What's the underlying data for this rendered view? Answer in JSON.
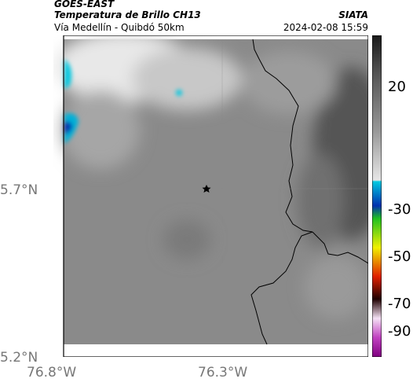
{
  "header": {
    "title_line1": "GOES-EAST",
    "title_line2": "Temperatura de Brillo CH13",
    "brand": "SIATA",
    "subtitle_left": "Vía Medellín - Quibdó 50km",
    "subtitle_right": "2024-02-08 15:59"
  },
  "map": {
    "lat_labels": [
      "5.7°N",
      "5.2°N"
    ],
    "lon_labels": [
      "76.8°W",
      "76.3°W"
    ],
    "marker_icon": "star-icon"
  },
  "colorbar": {
    "ticks": [
      "20",
      "-30",
      "-50",
      "-70",
      "-90"
    ],
    "colors": {
      "warm_gray": "#8a8a8a",
      "dark": "#2a2a2a",
      "cyan": "#00c8e0",
      "blue": "#0030b0",
      "green": "#20c020",
      "yellow": "#f0f000",
      "red": "#e02000",
      "magenta": "#c040c0"
    }
  }
}
